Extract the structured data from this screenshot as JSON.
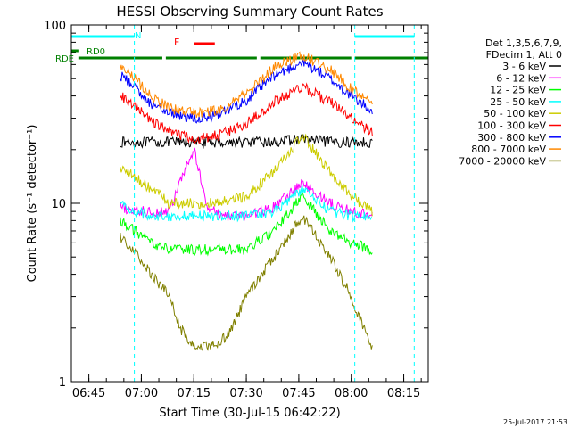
{
  "chart_data": {
    "type": "line",
    "title": "HESSI Observing Summary Count Rates",
    "xlabel": "Start Time (30-Jul-15 06:42:22)",
    "ylabel": "Count Rate (s⁻¹ detector⁻¹)",
    "x_range": [
      "06:40",
      "08:22"
    ],
    "y_range": [
      1,
      100
    ],
    "y_scale": "log",
    "x_ticks": [
      "06:45",
      "07:00",
      "07:15",
      "07:30",
      "07:45",
      "08:00",
      "08:15"
    ],
    "y_ticks": [
      "1",
      "10",
      "100"
    ],
    "legend": {
      "header": [
        "Det 1,3,5,6,7,9,",
        "FDecim 1, Att 0"
      ],
      "placement": "right"
    },
    "flag_labels": {
      "n": "N",
      "rd0": "RD0",
      "rde": "RDE",
      "f": "F"
    },
    "flags": [
      {
        "label": "N",
        "color": "#00ffff",
        "segments": [
          [
            "06:40",
            "06:58"
          ],
          [
            "08:01",
            "08:18"
          ]
        ]
      },
      {
        "label": "RD0",
        "color": "#008000",
        "segments": [
          [
            "06:40",
            "06:42"
          ]
        ]
      },
      {
        "label": "RDE",
        "color": "#008000",
        "segments": [
          [
            "06:42",
            "07:06"
          ],
          [
            "07:07",
            "07:33"
          ],
          [
            "07:34",
            "08:00"
          ],
          [
            "08:01",
            "08:22"
          ]
        ]
      },
      {
        "label": "F",
        "color": "#ff0000",
        "segments": [
          [
            "07:15",
            "07:21"
          ]
        ]
      }
    ],
    "night_markers": [
      "06:58",
      "08:01",
      "08:18"
    ],
    "series": [
      {
        "name": "3 - 6 keV",
        "color": "#000000",
        "times": [
          "06:54",
          "06:58",
          "07:03",
          "07:08",
          "07:15",
          "07:22",
          "07:30",
          "07:38",
          "07:46",
          "07:54",
          "08:00",
          "08:06"
        ],
        "values": [
          22,
          22,
          22,
          22,
          22,
          22,
          22,
          22,
          23,
          22,
          22,
          22
        ]
      },
      {
        "name": "6 - 12 keV",
        "color": "#ff00ff",
        "times": [
          "06:54",
          "06:58",
          "07:03",
          "07:08",
          "07:11",
          "07:15",
          "07:19",
          "07:23",
          "07:30",
          "07:38",
          "07:46",
          "07:54",
          "08:00",
          "08:06"
        ],
        "values": [
          9.5,
          9,
          9,
          9,
          13,
          20,
          9.5,
          8.5,
          8.5,
          9.5,
          13,
          10,
          9,
          8.5
        ]
      },
      {
        "name": "12 - 25 keV",
        "color": "#00ff00",
        "times": [
          "06:54",
          "06:58",
          "07:03",
          "07:08",
          "07:15",
          "07:22",
          "07:30",
          "07:38",
          "07:46",
          "07:54",
          "08:00",
          "08:06"
        ],
        "values": [
          8,
          7,
          6,
          5.5,
          5.5,
          5.5,
          5.5,
          7,
          11,
          7,
          6,
          5.5
        ]
      },
      {
        "name": "25 - 50 keV",
        "color": "#00ffff",
        "times": [
          "06:54",
          "06:58",
          "07:03",
          "07:08",
          "07:15",
          "07:22",
          "07:30",
          "07:38",
          "07:46",
          "07:54",
          "08:00",
          "08:06"
        ],
        "values": [
          10,
          9,
          8.5,
          8.5,
          8.5,
          8.5,
          8.5,
          9,
          12,
          9,
          8.5,
          8.5
        ]
      },
      {
        "name": "50 - 100 keV",
        "color": "#cccc00",
        "times": [
          "06:54",
          "06:58",
          "07:03",
          "07:08",
          "07:15",
          "07:22",
          "07:30",
          "07:38",
          "07:46",
          "07:54",
          "08:00",
          "08:06"
        ],
        "values": [
          16,
          14,
          12,
          10,
          10,
          10,
          11,
          15,
          24,
          15,
          11,
          9
        ]
      },
      {
        "name": "100 - 300 keV",
        "color": "#ff0000",
        "times": [
          "06:54",
          "06:58",
          "07:03",
          "07:08",
          "07:15",
          "07:22",
          "07:30",
          "07:38",
          "07:46",
          "07:54",
          "08:00",
          "08:06"
        ],
        "values": [
          40,
          35,
          29,
          25,
          23,
          24,
          28,
          37,
          45,
          37,
          30,
          25
        ]
      },
      {
        "name": "300 - 800 keV",
        "color": "#0000ff",
        "times": [
          "06:54",
          "06:58",
          "07:03",
          "07:08",
          "07:15",
          "07:22",
          "07:30",
          "07:38",
          "07:46",
          "07:54",
          "08:00",
          "08:06"
        ],
        "values": [
          52,
          45,
          36,
          32,
          30,
          31,
          38,
          52,
          62,
          50,
          40,
          33
        ]
      },
      {
        "name": "800 - 7000 keV",
        "color": "#ff8800",
        "times": [
          "06:54",
          "06:58",
          "07:03",
          "07:08",
          "07:15",
          "07:22",
          "07:30",
          "07:38",
          "07:46",
          "07:54",
          "08:00",
          "08:06"
        ],
        "values": [
          60,
          50,
          40,
          34,
          32,
          33,
          41,
          58,
          68,
          56,
          44,
          36
        ]
      },
      {
        "name": "7000 - 20000 keV",
        "color": "#808000",
        "times": [
          "06:54",
          "06:58",
          "07:03",
          "07:08",
          "07:11",
          "07:15",
          "07:22",
          "07:26",
          "07:30",
          "07:38",
          "07:46",
          "07:54",
          "08:00",
          "08:06"
        ],
        "values": [
          6.5,
          5.5,
          4,
          3,
          2,
          1.6,
          1.6,
          2,
          3,
          5,
          8.5,
          5,
          3,
          1.5
        ]
      }
    ],
    "footer_date": "25-Jul-2017 21:53"
  }
}
